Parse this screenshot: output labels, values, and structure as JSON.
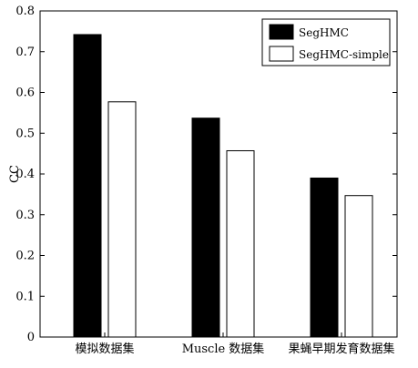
{
  "chart_data": {
    "type": "bar",
    "categories": [
      "模拟数据集",
      "Muscle 数据集",
      "果蝇早期发育数据集"
    ],
    "series": [
      {
        "name": "SegHMC",
        "values": [
          0.742,
          0.537,
          0.39
        ]
      },
      {
        "name": "SegHMC-simple",
        "values": [
          0.577,
          0.457,
          0.347
        ]
      }
    ],
    "title": "",
    "xlabel": "",
    "ylabel": "CC",
    "ylim": [
      0,
      0.8
    ],
    "yticks": [
      0,
      0.1,
      0.2,
      0.3,
      0.4,
      0.5,
      0.6,
      0.7,
      0.8
    ],
    "ytick_labels": [
      "0",
      "0.1",
      "0.2",
      "0.3",
      "0.4",
      "0.5",
      "0.6",
      "0.7",
      "0.8"
    ],
    "grid": false,
    "legend_position": "top-right",
    "colors": {
      "SegHMC": "#000000",
      "SegHMC-simple": "#ffffff",
      "axis": "#000000"
    }
  }
}
